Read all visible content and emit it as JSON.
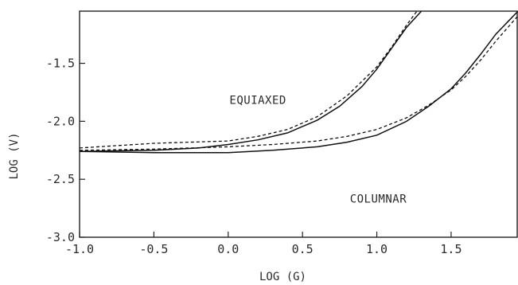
{
  "chart_data": {
    "type": "line",
    "title": "",
    "xlabel": "LOG (G)",
    "ylabel": "LOG (V)",
    "xlim": [
      -1.0,
      1.95
    ],
    "ylim": [
      -3.0,
      -1.05
    ],
    "xticks": [
      -1.0,
      -0.5,
      0.0,
      0.5,
      1.0,
      1.5
    ],
    "xtick_labels": [
      "-1.0",
      "-0.5",
      "0.0",
      "0.5",
      "1.0",
      "1.5"
    ],
    "yticks": [
      -3.0,
      -2.5,
      -2.0,
      -1.5
    ],
    "ytick_labels": [
      "-3.0",
      "-2.5",
      "-2.0",
      "-1.5"
    ],
    "grid": false,
    "legend": "none",
    "annotations": [
      {
        "text": "EQUIAXED",
        "x": 0.2,
        "y": -1.85
      },
      {
        "text": "COLUMNAR",
        "x": 1.01,
        "y": -2.7
      }
    ],
    "series": [
      {
        "style": "solid",
        "x": [
          -1.0,
          -0.5,
          -0.2,
          0.0,
          0.2,
          0.4,
          0.6,
          0.75,
          0.9,
          1.0,
          1.1,
          1.2,
          1.3
        ],
        "y": [
          -2.26,
          -2.25,
          -2.23,
          -2.2,
          -2.16,
          -2.1,
          -1.99,
          -1.87,
          -1.7,
          -1.55,
          -1.37,
          -1.19,
          -1.05
        ]
      },
      {
        "style": "dashed",
        "x": [
          -1.0,
          -0.5,
          0.0,
          0.2,
          0.4,
          0.6,
          0.8,
          1.0,
          1.1,
          1.2,
          1.27
        ],
        "y": [
          -2.23,
          -2.19,
          -2.17,
          -2.13,
          -2.07,
          -1.96,
          -1.78,
          -1.53,
          -1.36,
          -1.17,
          -1.05
        ]
      },
      {
        "style": "solid",
        "x": [
          -1.0,
          -0.5,
          0.0,
          0.3,
          0.6,
          0.8,
          1.0,
          1.2,
          1.35,
          1.5,
          1.6,
          1.7,
          1.8,
          1.95
        ],
        "y": [
          -2.26,
          -2.27,
          -2.27,
          -2.25,
          -2.22,
          -2.18,
          -2.12,
          -2.0,
          -1.87,
          -1.72,
          -1.58,
          -1.42,
          -1.25,
          -1.05
        ]
      },
      {
        "style": "dashed",
        "x": [
          -1.0,
          -0.5,
          0.0,
          0.3,
          0.6,
          0.8,
          1.0,
          1.2,
          1.35,
          1.5,
          1.6,
          1.7,
          1.8,
          1.95
        ],
        "y": [
          -2.25,
          -2.24,
          -2.22,
          -2.2,
          -2.17,
          -2.13,
          -2.07,
          -1.97,
          -1.86,
          -1.73,
          -1.61,
          -1.47,
          -1.31,
          -1.09
        ]
      }
    ]
  }
}
